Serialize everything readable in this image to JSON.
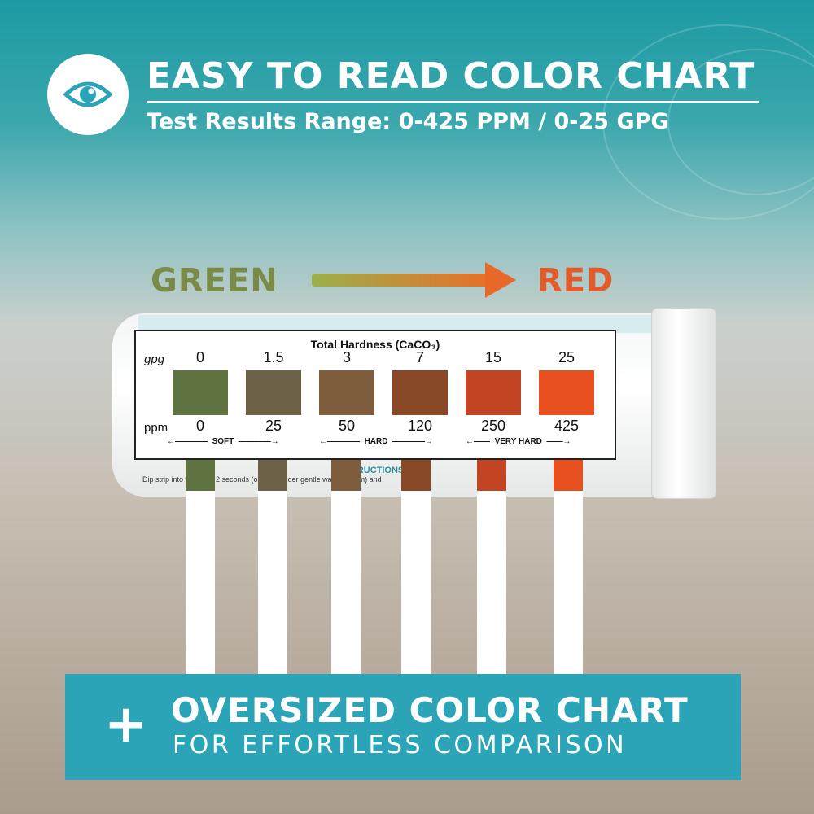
{
  "header": {
    "icon": "eye-icon",
    "title": "EASY TO READ COLOR CHART",
    "subtitle": "Test Results Range: 0-425 PPM / 0-25 GPG"
  },
  "gradient_label": {
    "start": "GREEN",
    "end": "RED",
    "start_color": "#7a8b48",
    "end_color": "#e25b2a"
  },
  "chart": {
    "title": "Total Hardness (CaCO₃)",
    "gpg_label": "gpg",
    "ppm_label": "ppm",
    "swatches": [
      {
        "gpg": "0",
        "ppm": "0",
        "color": "#5e7340"
      },
      {
        "gpg": "1.5",
        "ppm": "25",
        "color": "#6d6148"
      },
      {
        "gpg": "3",
        "ppm": "50",
        "color": "#7e5d3c"
      },
      {
        "gpg": "7",
        "ppm": "120",
        "color": "#8a4926"
      },
      {
        "gpg": "15",
        "ppm": "250",
        "color": "#c24423"
      },
      {
        "gpg": "25",
        "ppm": "425",
        "color": "#e9501f"
      }
    ],
    "classes": [
      "SOFT",
      "HARD",
      "VERY HARD"
    ],
    "instructions_heading": "INSTRUCTIONS",
    "instructions_text": "Dip strip into water for 2 seconds (or pass under gentle water stream) and"
  },
  "banner": {
    "icon": "plus-icon",
    "title": "OVERSIZED COLOR CHART",
    "subtitle": "FOR EFFORTLESS COMPARISON",
    "color": "#2aa4b6"
  }
}
